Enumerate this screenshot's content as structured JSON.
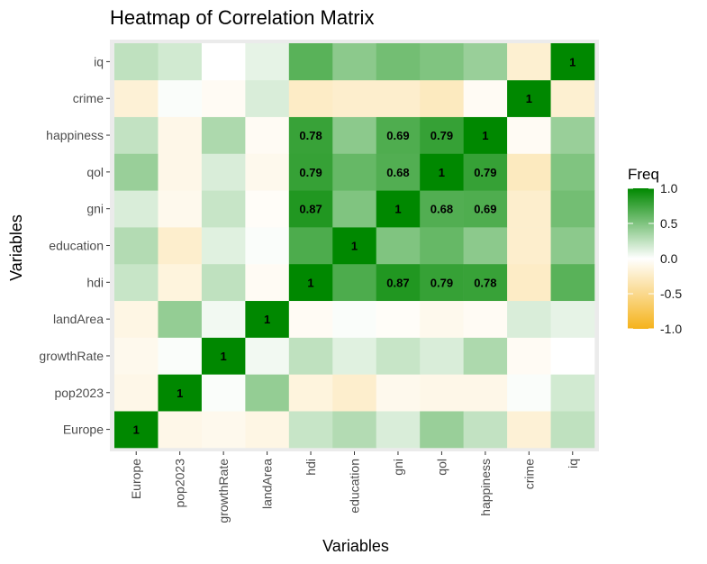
{
  "chart_data": {
    "type": "heatmap",
    "title": "Heatmap of Correlation Matrix",
    "xlabel": "Variables",
    "ylabel": "Variables",
    "x_categories": [
      "Europe",
      "pop2023",
      "growthRate",
      "landArea",
      "hdi",
      "education",
      "gni",
      "qol",
      "happiness",
      "crime",
      "iq"
    ],
    "y_categories": [
      "Europe",
      "pop2023",
      "growthRate",
      "landArea",
      "hdi",
      "education",
      "gni",
      "qol",
      "happiness",
      "crime",
      "iq"
    ],
    "matrix": [
      [
        1.0,
        -0.1,
        -0.08,
        -0.12,
        0.22,
        0.3,
        0.15,
        0.4,
        0.24,
        -0.18,
        0.25
      ],
      [
        -0.1,
        1.0,
        0.02,
        0.42,
        -0.15,
        -0.22,
        -0.08,
        -0.1,
        -0.1,
        0.02,
        0.18
      ],
      [
        -0.08,
        0.02,
        1.0,
        0.05,
        0.25,
        0.12,
        0.22,
        0.15,
        0.32,
        -0.05,
        0.0
      ],
      [
        -0.12,
        0.42,
        0.05,
        1.0,
        -0.05,
        0.02,
        -0.03,
        -0.08,
        -0.05,
        0.15,
        0.1
      ],
      [
        0.22,
        -0.15,
        0.25,
        -0.05,
        1.0,
        0.7,
        0.87,
        0.79,
        0.78,
        -0.25,
        0.65
      ],
      [
        0.3,
        -0.22,
        0.12,
        0.02,
        0.7,
        1.0,
        0.5,
        0.6,
        0.45,
        -0.22,
        0.45
      ],
      [
        0.15,
        -0.08,
        0.22,
        -0.03,
        0.87,
        0.5,
        1.0,
        0.68,
        0.69,
        -0.22,
        0.55
      ],
      [
        0.4,
        -0.1,
        0.15,
        -0.08,
        0.79,
        0.6,
        0.68,
        1.0,
        0.79,
        -0.28,
        0.5
      ],
      [
        0.24,
        -0.1,
        0.32,
        -0.05,
        0.78,
        0.45,
        0.69,
        0.79,
        1.0,
        -0.05,
        0.4
      ],
      [
        -0.18,
        0.02,
        -0.05,
        0.15,
        -0.25,
        -0.22,
        -0.22,
        -0.28,
        -0.05,
        1.0,
        -0.2
      ],
      [
        0.25,
        0.18,
        0.0,
        0.1,
        0.65,
        0.45,
        0.55,
        0.5,
        0.4,
        -0.2,
        1.0
      ]
    ],
    "labeled_cells": [
      {
        "x": "Europe",
        "y": "Europe",
        "text": "1"
      },
      {
        "x": "pop2023",
        "y": "pop2023",
        "text": "1"
      },
      {
        "x": "growthRate",
        "y": "growthRate",
        "text": "1"
      },
      {
        "x": "landArea",
        "y": "landArea",
        "text": "1"
      },
      {
        "x": "hdi",
        "y": "hdi",
        "text": "1"
      },
      {
        "x": "gni",
        "y": "hdi",
        "text": "0.87"
      },
      {
        "x": "qol",
        "y": "hdi",
        "text": "0.79"
      },
      {
        "x": "happiness",
        "y": "hdi",
        "text": "0.78"
      },
      {
        "x": "education",
        "y": "education",
        "text": "1"
      },
      {
        "x": "hdi",
        "y": "gni",
        "text": "0.87"
      },
      {
        "x": "gni",
        "y": "gni",
        "text": "1"
      },
      {
        "x": "qol",
        "y": "gni",
        "text": "0.68"
      },
      {
        "x": "happiness",
        "y": "gni",
        "text": "0.69"
      },
      {
        "x": "hdi",
        "y": "qol",
        "text": "0.79"
      },
      {
        "x": "gni",
        "y": "qol",
        "text": "0.68"
      },
      {
        "x": "qol",
        "y": "qol",
        "text": "1"
      },
      {
        "x": "happiness",
        "y": "qol",
        "text": "0.79"
      },
      {
        "x": "hdi",
        "y": "happiness",
        "text": "0.78"
      },
      {
        "x": "gni",
        "y": "happiness",
        "text": "0.69"
      },
      {
        "x": "qol",
        "y": "happiness",
        "text": "0.79"
      },
      {
        "x": "happiness",
        "y": "happiness",
        "text": "1"
      },
      {
        "x": "crime",
        "y": "crime",
        "text": "1"
      },
      {
        "x": "iq",
        "y": "iq",
        "text": "1"
      }
    ],
    "legend": {
      "title": "Freq",
      "placement": "right",
      "range": [
        -1,
        1
      ],
      "ticks": [
        "1.0",
        "0.5",
        "0.0",
        "-0.5",
        "-1.0"
      ],
      "tick_values": [
        1.0,
        0.5,
        0.0,
        -0.5,
        -1.0
      ],
      "colors": {
        "low": "#f5b31b",
        "mid": "#ffffff",
        "high": "#008800"
      }
    },
    "panel_background": "#ebebeb",
    "grid": true
  }
}
